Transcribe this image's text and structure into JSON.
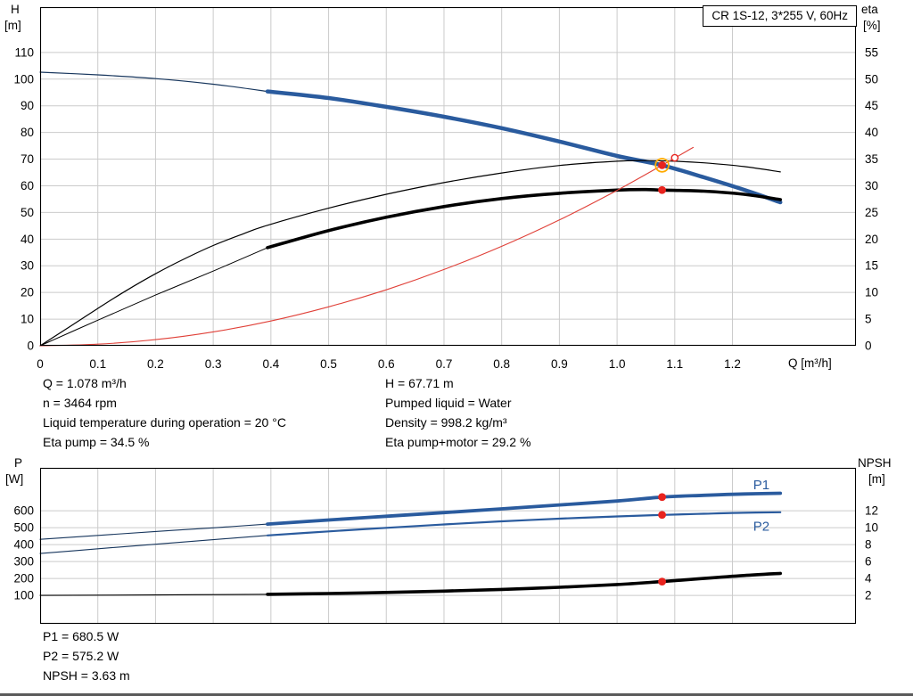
{
  "results_top": {
    "q": "Q = 1.078 m³/h",
    "n": "n = 3464 rpm",
    "temp": "Liquid temperature during operation = 20 °C",
    "eta_pump": "Eta pump = 34.5 %",
    "h": "H = 67.71 m",
    "liquid": "Pumped liquid = Water",
    "density": "Density = 998.2 kg/m³",
    "eta_total": "Eta pump+motor = 29.2 %"
  },
  "results_bottom": {
    "p1": "P1 = 680.5 W",
    "p2": "P2 = 575.2 W",
    "npsh": "NPSH = 3.63 m"
  },
  "chart_data": [
    {
      "type": "line",
      "title": "CR 1S-12, 3*255 V, 60Hz",
      "grid": true,
      "x_axis": {
        "label": "Q [m³/h]",
        "min": 0,
        "max": 1.414,
        "ticks": [
          0,
          0.1,
          0.2,
          0.3,
          0.4,
          0.5,
          0.6,
          0.7,
          0.8,
          0.9,
          1.0,
          1.1,
          1.2
        ],
        "tick_labels": [
          "0",
          "0.1",
          "0.2",
          "0.3",
          "0.4",
          "0.5",
          "0.6",
          "0.7",
          "0.8",
          "0.9",
          "1.0",
          "1.1",
          "1.2"
        ]
      },
      "y_left": {
        "label": "H [m]",
        "label_lines": [
          "H",
          "[m]"
        ],
        "min": 0,
        "max": 127,
        "ticks": [
          0,
          10,
          20,
          30,
          40,
          50,
          60,
          70,
          80,
          90,
          100,
          110
        ]
      },
      "y_right": {
        "label": "eta [%]",
        "label_lines": [
          "eta",
          "[%]"
        ],
        "min": 0,
        "max": 63.5,
        "ticks": [
          0,
          5,
          10,
          15,
          20,
          25,
          30,
          35,
          40,
          45,
          50,
          55
        ]
      },
      "series": [
        {
          "name": "qh-curve-thin",
          "color": "#17365d",
          "width": 1.2,
          "axis": "left",
          "points": [
            [
              0,
              102.6
            ],
            [
              0.1,
              101.6
            ],
            [
              0.2,
              100.2
            ],
            [
              0.3,
              98.1
            ],
            [
              0.394,
              95.4
            ]
          ]
        },
        {
          "name": "qh-curve",
          "color": "#2a5b9e",
          "width": 4.5,
          "axis": "left",
          "points": [
            [
              0.394,
              95.4
            ],
            [
              0.5,
              92.9
            ],
            [
              0.6,
              89.6
            ],
            [
              0.7,
              85.9
            ],
            [
              0.8,
              81.6
            ],
            [
              0.9,
              76.6
            ],
            [
              1.0,
              71.2
            ],
            [
              1.078,
              67.71
            ],
            [
              1.15,
              63.2
            ],
            [
              1.22,
              58.5
            ],
            [
              1.283,
              53.8
            ]
          ]
        },
        {
          "name": "eta-pump-curve",
          "color": "#000000",
          "width": 1.2,
          "axis": "right",
          "points": [
            [
              0,
              0
            ],
            [
              0.05,
              3.5
            ],
            [
              0.1,
              7.0
            ],
            [
              0.15,
              10.4
            ],
            [
              0.2,
              13.5
            ],
            [
              0.25,
              16.3
            ],
            [
              0.3,
              18.8
            ],
            [
              0.35,
              20.9
            ],
            [
              0.394,
              22.6
            ],
            [
              0.5,
              25.8
            ],
            [
              0.6,
              28.4
            ],
            [
              0.7,
              30.6
            ],
            [
              0.8,
              32.4
            ],
            [
              0.9,
              33.8
            ],
            [
              1.0,
              34.6
            ],
            [
              1.05,
              34.7
            ],
            [
              1.1,
              34.6
            ],
            [
              1.15,
              34.3
            ],
            [
              1.22,
              33.6
            ],
            [
              1.283,
              32.6
            ]
          ]
        },
        {
          "name": "eta-pump-motor-curve-thin",
          "color": "#000000",
          "width": 1,
          "axis": "right",
          "points": [
            [
              0,
              0
            ],
            [
              0.1,
              4.8
            ],
            [
              0.2,
              9.5
            ],
            [
              0.3,
              14.0
            ],
            [
              0.394,
              18.4
            ]
          ]
        },
        {
          "name": "eta-pump-motor-curve",
          "color": "#000000",
          "width": 3.6,
          "axis": "right",
          "points": [
            [
              0.394,
              18.4
            ],
            [
              0.5,
              21.6
            ],
            [
              0.6,
              24.1
            ],
            [
              0.7,
              26.1
            ],
            [
              0.8,
              27.6
            ],
            [
              0.9,
              28.6
            ],
            [
              1.0,
              29.2
            ],
            [
              1.05,
              29.3
            ],
            [
              1.078,
              29.2
            ],
            [
              1.15,
              29.0
            ],
            [
              1.22,
              28.4
            ],
            [
              1.283,
              27.4
            ]
          ]
        },
        {
          "name": "system-curve",
          "color": "#e04038",
          "width": 1.1,
          "axis": "left",
          "points": [
            [
              0,
              0
            ],
            [
              0.1,
              0.6
            ],
            [
              0.2,
              2.3
            ],
            [
              0.3,
              5.2
            ],
            [
              0.4,
              9.3
            ],
            [
              0.5,
              14.6
            ],
            [
              0.6,
              21.0
            ],
            [
              0.7,
              28.6
            ],
            [
              0.8,
              37.3
            ],
            [
              0.9,
              47.2
            ],
            [
              1.0,
              58.3
            ],
            [
              1.078,
              67.71
            ],
            [
              1.132,
              74.4
            ]
          ]
        }
      ],
      "markers": [
        {
          "name": "duty-point-head",
          "q": 1.078,
          "value": 67.71,
          "axis": "left",
          "type": "ring-dot",
          "color": "#e8231e",
          "ring_color": "#ffaa00"
        },
        {
          "name": "duty-point-eta",
          "q": 1.078,
          "value": 29.2,
          "axis": "right",
          "type": "dot",
          "color": "#e8231e"
        },
        {
          "name": "max-flow-point",
          "q": 1.1,
          "value": 70.5,
          "axis": "left",
          "type": "open",
          "color": "#e8231e"
        }
      ],
      "labels": []
    },
    {
      "type": "line",
      "title": "",
      "grid": true,
      "x_axis": {
        "label": "Q [m³/h]",
        "min": 0,
        "max": 1.414,
        "ticks": [
          0,
          0.1,
          0.2,
          0.3,
          0.4,
          0.5,
          0.6,
          0.7,
          0.8,
          0.9,
          1.0,
          1.1,
          1.2
        ],
        "tick_labels": []
      },
      "y_left": {
        "label": "P [W]",
        "label_lines": [
          "P",
          "[W]"
        ],
        "min": -68,
        "max": 853,
        "ticks": [
          100,
          200,
          300,
          400,
          500,
          600
        ]
      },
      "y_right": {
        "label": "NPSH [m]",
        "label_lines": [
          "NPSH",
          "[m]"
        ],
        "min": -1.36,
        "max": 17.06,
        "ticks": [
          2,
          4,
          6,
          8,
          10,
          12
        ]
      },
      "series": [
        {
          "name": "p1-curve-thin",
          "color": "#17365d",
          "width": 1.1,
          "axis": "left",
          "points": [
            [
              0,
              431
            ],
            [
              0.1,
              454
            ],
            [
              0.2,
              477
            ],
            [
              0.3,
              499
            ],
            [
              0.394,
              521
            ]
          ]
        },
        {
          "name": "p1-curve",
          "color": "#2a5b9e",
          "width": 3.8,
          "axis": "left",
          "points": [
            [
              0.394,
              521
            ],
            [
              0.5,
              545
            ],
            [
              0.6,
              567
            ],
            [
              0.7,
              589
            ],
            [
              0.8,
              611
            ],
            [
              0.9,
              634
            ],
            [
              1.0,
              657
            ],
            [
              1.078,
              680.5
            ],
            [
              1.15,
              691
            ],
            [
              1.22,
              699
            ],
            [
              1.283,
              703
            ]
          ]
        },
        {
          "name": "p2-curve-thin",
          "color": "#17365d",
          "width": 1.1,
          "axis": "left",
          "points": [
            [
              0,
              347
            ],
            [
              0.1,
              375
            ],
            [
              0.2,
              402
            ],
            [
              0.3,
              429
            ],
            [
              0.394,
              454
            ]
          ]
        },
        {
          "name": "p2-curve",
          "color": "#2a5b9e",
          "width": 2.2,
          "axis": "left",
          "points": [
            [
              0.394,
              454
            ],
            [
              0.5,
              478
            ],
            [
              0.6,
              499
            ],
            [
              0.7,
              519
            ],
            [
              0.8,
              537
            ],
            [
              0.9,
              553
            ],
            [
              1.0,
              566
            ],
            [
              1.078,
              575.2
            ],
            [
              1.15,
              582
            ],
            [
              1.22,
              588
            ],
            [
              1.283,
              591
            ]
          ]
        },
        {
          "name": "npsh-curve-thin",
          "color": "#000000",
          "width": 1.1,
          "axis": "right",
          "points": [
            [
              0,
              2.0
            ],
            [
              0.2,
              2.05
            ],
            [
              0.394,
              2.12
            ]
          ]
        },
        {
          "name": "npsh-curve",
          "color": "#000000",
          "width": 3.6,
          "axis": "right",
          "points": [
            [
              0.394,
              2.12
            ],
            [
              0.5,
              2.22
            ],
            [
              0.6,
              2.34
            ],
            [
              0.7,
              2.5
            ],
            [
              0.8,
              2.7
            ],
            [
              0.9,
              2.96
            ],
            [
              1.0,
              3.28
            ],
            [
              1.078,
              3.63
            ],
            [
              1.15,
              4.0
            ],
            [
              1.22,
              4.35
            ],
            [
              1.283,
              4.6
            ]
          ]
        }
      ],
      "markers": [
        {
          "name": "p1-duty-point",
          "q": 1.078,
          "value": 680.5,
          "axis": "left",
          "type": "dot",
          "color": "#e8231e"
        },
        {
          "name": "p2-duty-point",
          "q": 1.078,
          "value": 575.2,
          "axis": "left",
          "type": "dot",
          "color": "#e8231e"
        },
        {
          "name": "npsh-duty-point",
          "q": 1.078,
          "value": 3.63,
          "axis": "right",
          "type": "dot",
          "color": "#e8231e"
        }
      ],
      "labels": [
        {
          "name": "p1-label",
          "text": "P1",
          "q": 1.25,
          "value": 752,
          "axis": "left",
          "color": "#2a5b9e"
        },
        {
          "name": "p2-label",
          "text": "P2",
          "q": 1.25,
          "value": 508,
          "axis": "left",
          "color": "#2a5b9e"
        }
      ]
    }
  ]
}
